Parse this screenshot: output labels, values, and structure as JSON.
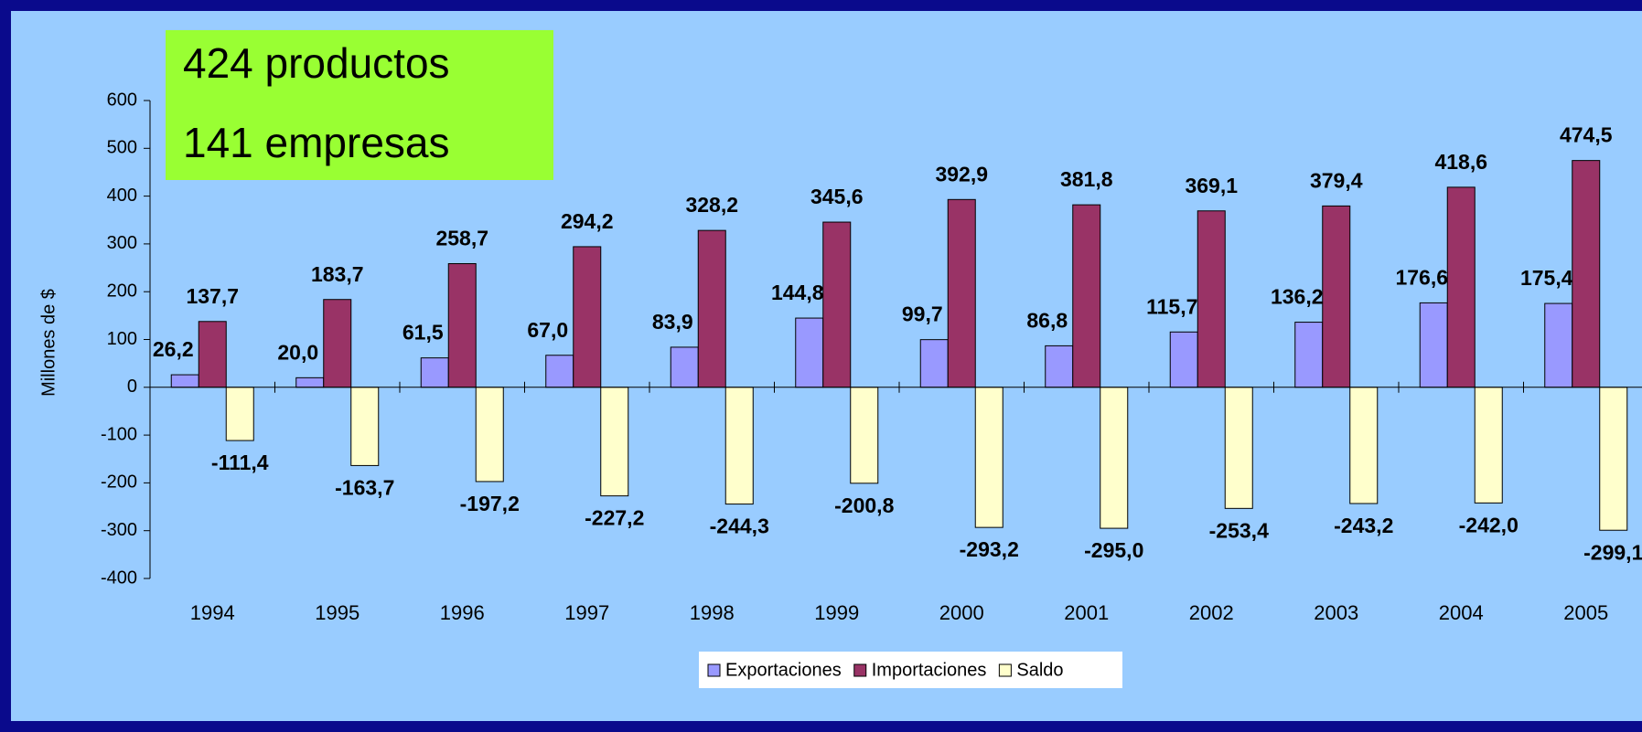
{
  "chart_data": {
    "type": "bar",
    "annotations": [
      "424 productos",
      "141 empresas"
    ],
    "y_label": "Millones de $",
    "categories": [
      "1994",
      "1995",
      "1996",
      "1997",
      "1998",
      "1999",
      "2000",
      "2001",
      "2002",
      "2003",
      "2004",
      "2005"
    ],
    "series": [
      {
        "name": "Exportaciones",
        "color": "#9999ff",
        "values": [
          26.2,
          20.0,
          61.5,
          67.0,
          83.9,
          144.8,
          99.7,
          86.8,
          115.7,
          136.2,
          176.6,
          175.4
        ],
        "value_labels": [
          "26,2",
          "20,0",
          "61,5",
          "67,0",
          "83,9",
          "144,8",
          "99,7",
          "86,8",
          "115,7",
          "136,2",
          "176,6",
          "175,4"
        ]
      },
      {
        "name": "Importaciones",
        "color": "#993366",
        "values": [
          137.7,
          183.7,
          258.7,
          294.2,
          328.2,
          345.6,
          392.9,
          381.8,
          369.1,
          379.4,
          418.6,
          474.5
        ],
        "value_labels": [
          "137,7",
          "183,7",
          "258,7",
          "294,2",
          "328,2",
          "345,6",
          "392,9",
          "381,8",
          "369,1",
          "379,4",
          "418,6",
          "474,5"
        ]
      },
      {
        "name": "Saldo",
        "color": "#ffffcc",
        "values": [
          -111.4,
          -163.7,
          -197.2,
          -227.2,
          -244.3,
          -200.8,
          -293.2,
          -295.0,
          -253.4,
          -243.2,
          -242.0,
          -299.1
        ],
        "value_labels": [
          "-111,4",
          "-163,7",
          "-197,2",
          "-227,2",
          "-244,3",
          "-200,8",
          "-293,2",
          "-295,0",
          "-253,4",
          "-243,2",
          "-242,0",
          "-299,1"
        ]
      }
    ],
    "ylim": [
      -400,
      600
    ],
    "yticks": [
      -400,
      -300,
      -200,
      -100,
      0,
      100,
      200,
      300,
      400,
      500,
      600
    ],
    "legend": "bottom"
  }
}
